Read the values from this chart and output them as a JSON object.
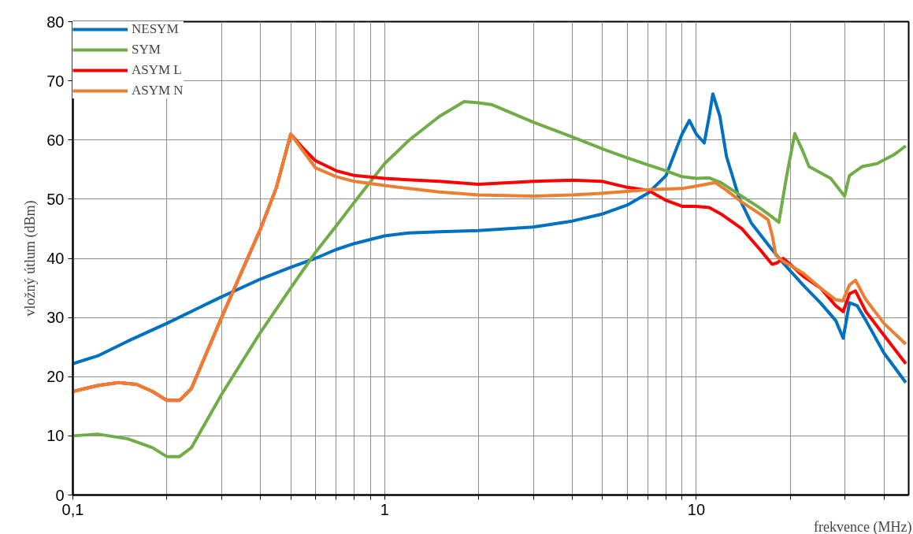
{
  "chart_data": {
    "type": "line",
    "xlabel": "frekvence (MHz)",
    "ylabel": "vložný útlum (dBm)",
    "log": "x",
    "grid": true,
    "legend": "top left",
    "line_style": "solid",
    "marker": "none",
    "xlim": [
      0.1,
      48
    ],
    "ylim": [
      0,
      80
    ],
    "xticks": [
      {
        "value": 0.1,
        "label": "0,1"
      },
      {
        "value": 0.2,
        "label": null
      },
      {
        "value": 0.3,
        "label": null
      },
      {
        "value": 0.4,
        "label": null
      },
      {
        "value": 0.5,
        "label": null
      },
      {
        "value": 0.6,
        "label": null
      },
      {
        "value": 0.7,
        "label": null
      },
      {
        "value": 0.8,
        "label": null
      },
      {
        "value": 0.9,
        "label": null
      },
      1,
      {
        "value": 2,
        "label": null
      },
      {
        "value": 3,
        "label": null
      },
      {
        "value": 4,
        "label": null
      },
      {
        "value": 5,
        "label": null
      },
      {
        "value": 6,
        "label": null
      },
      {
        "value": 7,
        "label": null
      },
      {
        "value": 8,
        "label": null
      },
      {
        "value": 9,
        "label": null
      },
      10,
      {
        "value": 20,
        "label": null
      },
      {
        "value": 30,
        "label": null
      },
      {
        "value": 40,
        "label": null
      }
    ],
    "yticks": [
      0,
      10,
      20,
      30,
      40,
      50,
      60,
      70,
      80
    ],
    "series": [
      {
        "name": "NESYM",
        "color": "#0070c0",
        "x": [
          0.1,
          0.12,
          0.15,
          0.2,
          0.3,
          0.4,
          0.5,
          0.6,
          0.7,
          0.8,
          1,
          1.2,
          1.5,
          2,
          3,
          4,
          5,
          6,
          7,
          8,
          9,
          9.5,
          10,
          10.6,
          11,
          11.3,
          11.9,
          12.5,
          13.7,
          15,
          17.3,
          19,
          22,
          25,
          28,
          29.6,
          31,
          32.8,
          35,
          40,
          47
        ],
        "values": [
          22.2,
          23.5,
          26,
          29,
          33.5,
          36.5,
          38.5,
          40,
          41.5,
          42.5,
          43.8,
          44.3,
          44.5,
          44.7,
          45.3,
          46.3,
          47.5,
          49,
          51,
          54,
          61,
          63.3,
          61,
          59.5,
          64,
          67.8,
          64,
          57.2,
          50.3,
          46,
          41.8,
          39.2,
          35.5,
          32.5,
          29.5,
          26.5,
          32.5,
          32,
          29.5,
          24,
          19
        ]
      },
      {
        "name": "SYM",
        "color": "#70ad47",
        "x": [
          0.1,
          0.12,
          0.15,
          0.18,
          0.2,
          0.22,
          0.24,
          0.3,
          0.4,
          0.5,
          0.6,
          0.7,
          0.8,
          1,
          1.2,
          1.5,
          1.8,
          2,
          2.2,
          3,
          4,
          5,
          6,
          7,
          8,
          9,
          10,
          11,
          12,
          14,
          16,
          17,
          18.4,
          19.5,
          20.7,
          22,
          23,
          27,
          29.9,
          31,
          34,
          38,
          43,
          47
        ],
        "values": [
          10,
          10.3,
          9.5,
          8,
          6.5,
          6.5,
          8,
          17,
          27.5,
          35,
          41,
          45.5,
          49.5,
          56,
          60,
          64,
          66.5,
          66.3,
          66,
          63,
          60.5,
          58.5,
          57,
          55.8,
          54.8,
          53.8,
          53.5,
          53.6,
          52.8,
          50.5,
          48.5,
          47.5,
          46.1,
          54,
          61.1,
          58,
          55.5,
          53.5,
          50.5,
          54,
          55.5,
          56,
          57.5,
          59
        ]
      },
      {
        "name": "ASYM L",
        "color": "#ff0000",
        "x": [
          0.1,
          0.12,
          0.14,
          0.16,
          0.18,
          0.2,
          0.22,
          0.24,
          0.3,
          0.4,
          0.45,
          0.5,
          0.55,
          0.6,
          0.7,
          0.8,
          1,
          1.5,
          2,
          3,
          4,
          5,
          6,
          7,
          8,
          9,
          10,
          11,
          12,
          14,
          16,
          17.5,
          18.1,
          19,
          20,
          22,
          25,
          28,
          29.6,
          31,
          32.4,
          35,
          40,
          47
        ],
        "values": [
          17.5,
          18.5,
          19,
          18.7,
          17.5,
          16,
          16,
          18,
          30,
          45,
          52,
          61,
          58.5,
          56.5,
          54.8,
          54,
          53.5,
          53,
          52.5,
          53,
          53.2,
          53,
          52,
          51.5,
          49.8,
          48.8,
          48.8,
          48.6,
          47.5,
          45,
          41.5,
          39,
          39.2,
          40,
          39,
          37,
          35,
          32,
          31,
          34,
          34.5,
          31,
          27,
          22.2
        ]
      },
      {
        "name": "ASYM N",
        "color": "#ed7d31",
        "x": [
          0.1,
          0.12,
          0.14,
          0.16,
          0.18,
          0.2,
          0.22,
          0.24,
          0.3,
          0.4,
          0.45,
          0.5,
          0.55,
          0.6,
          0.7,
          0.8,
          1,
          1.5,
          2,
          3,
          4,
          5,
          6,
          7,
          8,
          9,
          10,
          11.5,
          12.5,
          14,
          16,
          17,
          17.5,
          18,
          19,
          22,
          25,
          28,
          29.5,
          31,
          32.4,
          35,
          40,
          47
        ],
        "values": [
          17.5,
          18.5,
          19,
          18.7,
          17.5,
          16,
          16,
          18,
          30,
          45,
          52,
          61,
          58,
          55.3,
          53.8,
          53,
          52.3,
          51.2,
          50.7,
          50.5,
          50.7,
          51,
          51.3,
          51.6,
          51.7,
          51.8,
          52.2,
          52.8,
          51.5,
          49.5,
          47.5,
          46.5,
          44,
          40.5,
          39.5,
          37.5,
          35,
          33,
          32.8,
          35.5,
          36.3,
          33,
          29,
          25.5
        ]
      }
    ]
  }
}
